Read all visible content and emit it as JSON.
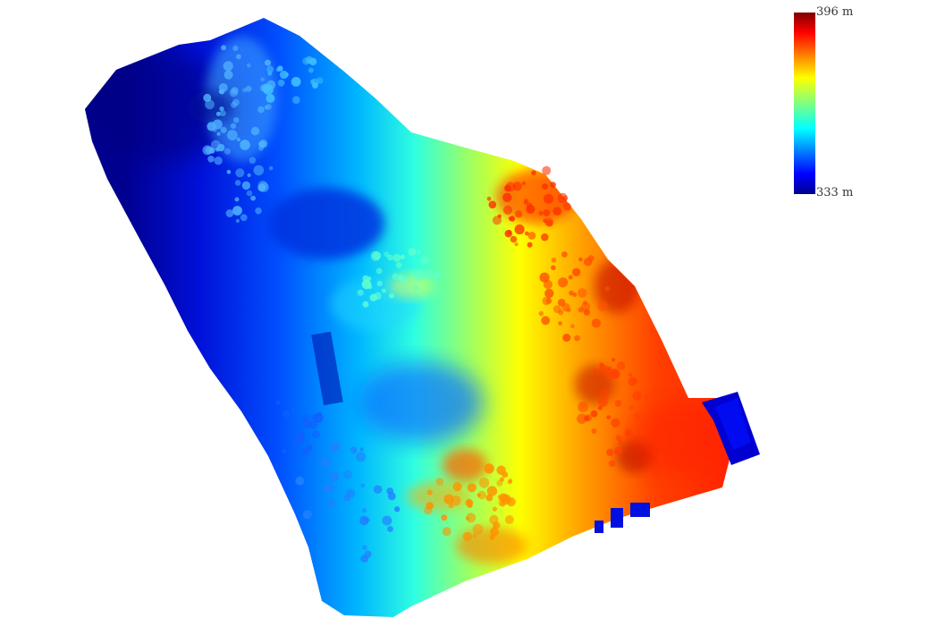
{
  "colorbar": {
    "max_label": "396 m",
    "min_label": "333 m",
    "max_value": 396,
    "min_value": 333,
    "unit": "m",
    "colormap": "jet",
    "colormap_stops": [
      "#7f0000",
      "#ff0000",
      "#ff8000",
      "#ffff00",
      "#80ff80",
      "#00ffff",
      "#0080ff",
      "#0000ff",
      "#00008f"
    ]
  },
  "map": {
    "type": "elevation raster",
    "background": "#ffffff"
  }
}
